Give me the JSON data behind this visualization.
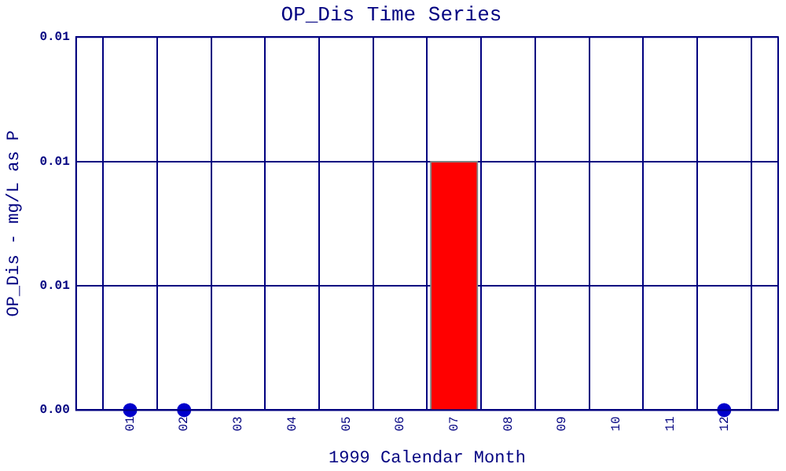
{
  "chart_data": {
    "type": "bar",
    "title": "OP_Dis Time Series",
    "xlabel": "1999 Calendar Month",
    "ylabel": "OP_Dis - mg/L as P",
    "x": [
      1,
      2,
      3,
      4,
      5,
      6,
      7,
      8,
      9,
      10,
      11,
      12
    ],
    "xlim": [
      0,
      13
    ],
    "xticks": [
      {
        "value": 1,
        "label": "01"
      },
      {
        "value": 2,
        "label": "02"
      },
      {
        "value": 3,
        "label": "03"
      },
      {
        "value": 4,
        "label": "04"
      },
      {
        "value": 5,
        "label": "05"
      },
      {
        "value": 6,
        "label": "06"
      },
      {
        "value": 7,
        "label": "07"
      },
      {
        "value": 8,
        "label": "08"
      },
      {
        "value": 9,
        "label": "09"
      },
      {
        "value": 10,
        "label": "10"
      },
      {
        "value": 11,
        "label": "11"
      },
      {
        "value": 12,
        "label": "12"
      }
    ],
    "ylim": [
      0,
      0.015
    ],
    "yticks": [
      {
        "value": 0,
        "label": "0.00"
      },
      {
        "value": 0.005,
        "label": "0.01"
      },
      {
        "value": 0.01,
        "label": "0.01"
      },
      {
        "value": 0.015,
        "label": "0.01"
      }
    ],
    "series": [
      {
        "color": "#ff0000",
        "values": [
          null,
          null,
          0,
          0,
          0,
          0,
          0.01,
          0,
          0,
          0,
          0,
          null
        ]
      },
      {
        "type": "scatter",
        "color": "#0000cc",
        "values": [
          0,
          0,
          null,
          null,
          null,
          null,
          null,
          null,
          null,
          null,
          null,
          0
        ]
      }
    ],
    "grid": true,
    "legend": false,
    "marker": "circle"
  }
}
